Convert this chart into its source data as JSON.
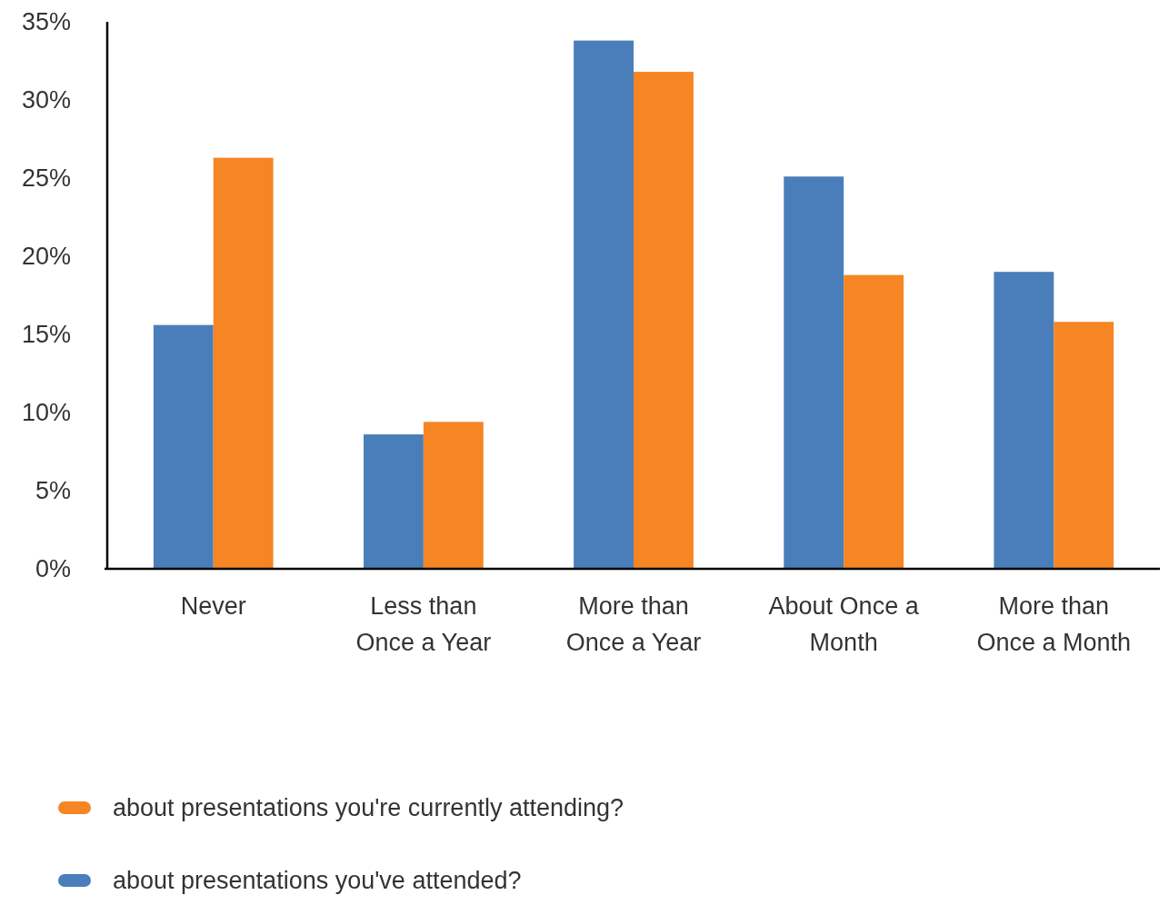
{
  "chart_data": {
    "type": "bar",
    "categories": [
      "Never",
      "Less than Once a Year",
      "More than Once a Year",
      "About Once a Month",
      "More than Once a Month"
    ],
    "series": [
      {
        "name": "about presentations you've attended?",
        "color": "#4a7ebb",
        "values": [
          15.6,
          8.6,
          33.8,
          25.1,
          19.0
        ]
      },
      {
        "name": "about presentations you're currently attending?",
        "color": "#f68523",
        "values": [
          26.3,
          9.4,
          31.8,
          18.8,
          15.8
        ]
      }
    ],
    "ylim": [
      0,
      35
    ],
    "yticks": [
      {
        "value": 0,
        "label": "0%"
      },
      {
        "value": 5,
        "label": "5%"
      },
      {
        "value": 10,
        "label": "10%"
      },
      {
        "value": 15,
        "label": "15%"
      },
      {
        "value": 20,
        "label": "20%"
      },
      {
        "value": 25,
        "label": "25%"
      },
      {
        "value": 30,
        "label": "30%"
      },
      {
        "value": 35,
        "label": "35%"
      }
    ],
    "grid": false,
    "legend": "bottom"
  }
}
